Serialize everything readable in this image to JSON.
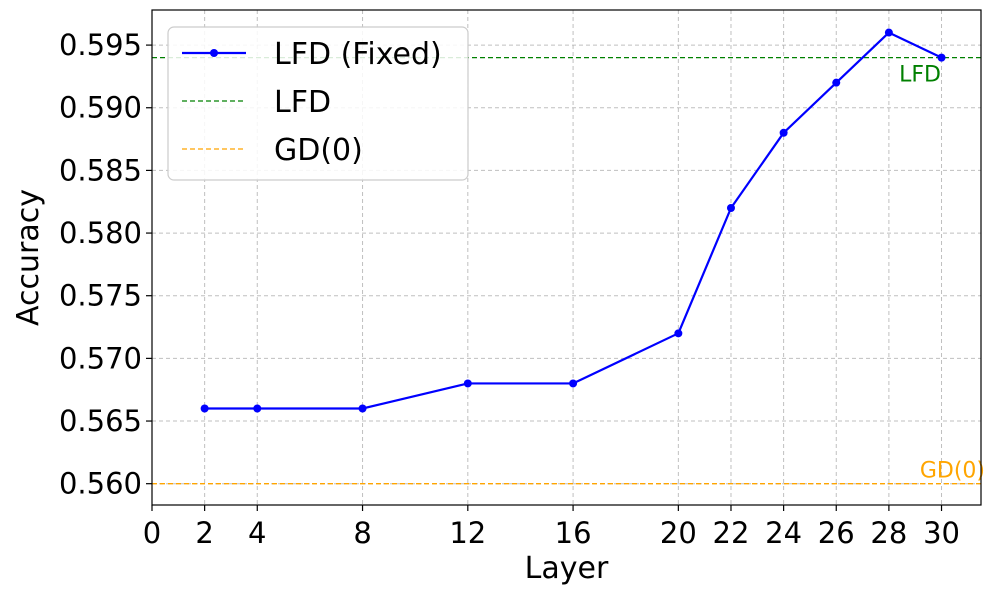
{
  "chart_data": {
    "type": "line",
    "xlabel": "Layer",
    "ylabel": "Accuracy",
    "xlim": [
      0,
      31.5
    ],
    "ylim": [
      0.5583,
      0.5978
    ],
    "x_ticks": [
      0,
      2,
      4,
      8,
      12,
      16,
      20,
      22,
      24,
      26,
      28,
      30
    ],
    "y_ticks": [
      0.56,
      0.565,
      0.57,
      0.575,
      0.58,
      0.585,
      0.59,
      0.595
    ],
    "grid": true,
    "legend_position": "top-left",
    "series": [
      {
        "name": "LFD (Fixed)",
        "color": "#0000ff",
        "marker": "circle",
        "x": [
          2,
          4,
          8,
          12,
          16,
          20,
          22,
          24,
          26,
          28,
          30
        ],
        "y": [
          0.566,
          0.566,
          0.566,
          0.568,
          0.568,
          0.572,
          0.582,
          0.588,
          0.592,
          0.596,
          0.594
        ]
      }
    ],
    "reference_lines": [
      {
        "name": "LFD",
        "value": 0.594,
        "color": "#008000",
        "label": "LFD"
      },
      {
        "name": "GD(0)",
        "value": 0.56,
        "color": "#ffa500",
        "label": "GD(0)"
      }
    ]
  }
}
